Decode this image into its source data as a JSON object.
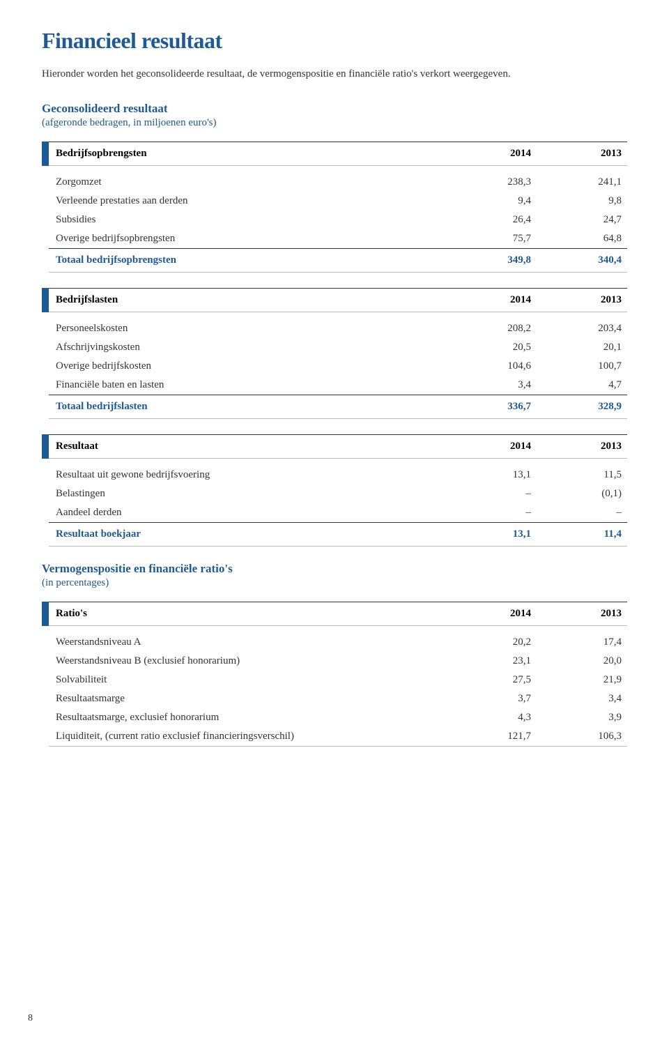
{
  "colors": {
    "accent": "#1e5a96",
    "text": "#333333",
    "border_dark": "#333333",
    "border_light": "#bbbbbb",
    "background": "#ffffff"
  },
  "title": "Financieel resultaat",
  "intro": "Hieronder worden het geconsolideerde resultaat, de vermogenspositie en financiële ratio's verkort weergegeven.",
  "section1": {
    "heading": "Geconsolideerd resultaat",
    "sub": "(afgeronde bedragen, in miljoenen euro's)"
  },
  "tables": [
    {
      "header": {
        "label": "Bedrijfsopbrengsten",
        "col1": "2014",
        "col2": "2013"
      },
      "rows": [
        {
          "label": "Zorgomzet",
          "col1": "238,3",
          "col2": "241,1"
        },
        {
          "label": "Verleende prestaties aan derden",
          "col1": "9,4",
          "col2": "9,8"
        },
        {
          "label": "Subsidies",
          "col1": "26,4",
          "col2": "24,7"
        },
        {
          "label": "Overige bedrijfsopbrengsten",
          "col1": "75,7",
          "col2": "64,8"
        }
      ],
      "total": {
        "label": "Totaal bedrijfsopbrengsten",
        "col1": "349,8",
        "col2": "340,4"
      }
    },
    {
      "header": {
        "label": "Bedrijfslasten",
        "col1": "2014",
        "col2": "2013"
      },
      "rows": [
        {
          "label": "Personeelskosten",
          "col1": "208,2",
          "col2": "203,4"
        },
        {
          "label": "Afschrijvingskosten",
          "col1": "20,5",
          "col2": "20,1"
        },
        {
          "label": "Overige bedrijfskosten",
          "col1": "104,6",
          "col2": "100,7"
        },
        {
          "label": "Financiële baten en lasten",
          "col1": "3,4",
          "col2": "4,7"
        }
      ],
      "total": {
        "label": "Totaal bedrijfslasten",
        "col1": "336,7",
        "col2": "328,9"
      }
    },
    {
      "header": {
        "label": "Resultaat",
        "col1": "2014",
        "col2": "2013"
      },
      "rows": [
        {
          "label": "Resultaat uit gewone bedrijfsvoering",
          "col1": "13,1",
          "col2": "11,5"
        },
        {
          "label": "Belastingen",
          "col1": "–",
          "col2": "(0,1)"
        },
        {
          "label": "Aandeel derden",
          "col1": "–",
          "col2": "–"
        }
      ],
      "total": {
        "label": "Resultaat boekjaar",
        "col1": "13,1",
        "col2": "11,4"
      }
    }
  ],
  "section2": {
    "heading": "Vermogenspositie en financiële ratio's",
    "sub": "(in percentages)"
  },
  "ratios": {
    "header": {
      "label": "Ratio's",
      "col1": "2014",
      "col2": "2013"
    },
    "rows": [
      {
        "label": "Weerstandsniveau A",
        "col1": "20,2",
        "col2": "17,4"
      },
      {
        "label": "Weerstandsniveau B (exclusief honorarium)",
        "col1": "23,1",
        "col2": "20,0"
      },
      {
        "label": "Solvabiliteit",
        "col1": "27,5",
        "col2": "21,9"
      },
      {
        "label": "Resultaatsmarge",
        "col1": "3,7",
        "col2": "3,4"
      },
      {
        "label": "Resultaatsmarge, exclusief honorarium",
        "col1": "4,3",
        "col2": "3,9"
      },
      {
        "label": "Liquiditeit, (current ratio exclusief financieringsverschil)",
        "col1": "121,7",
        "col2": "106,3"
      }
    ]
  },
  "page_number": "8"
}
